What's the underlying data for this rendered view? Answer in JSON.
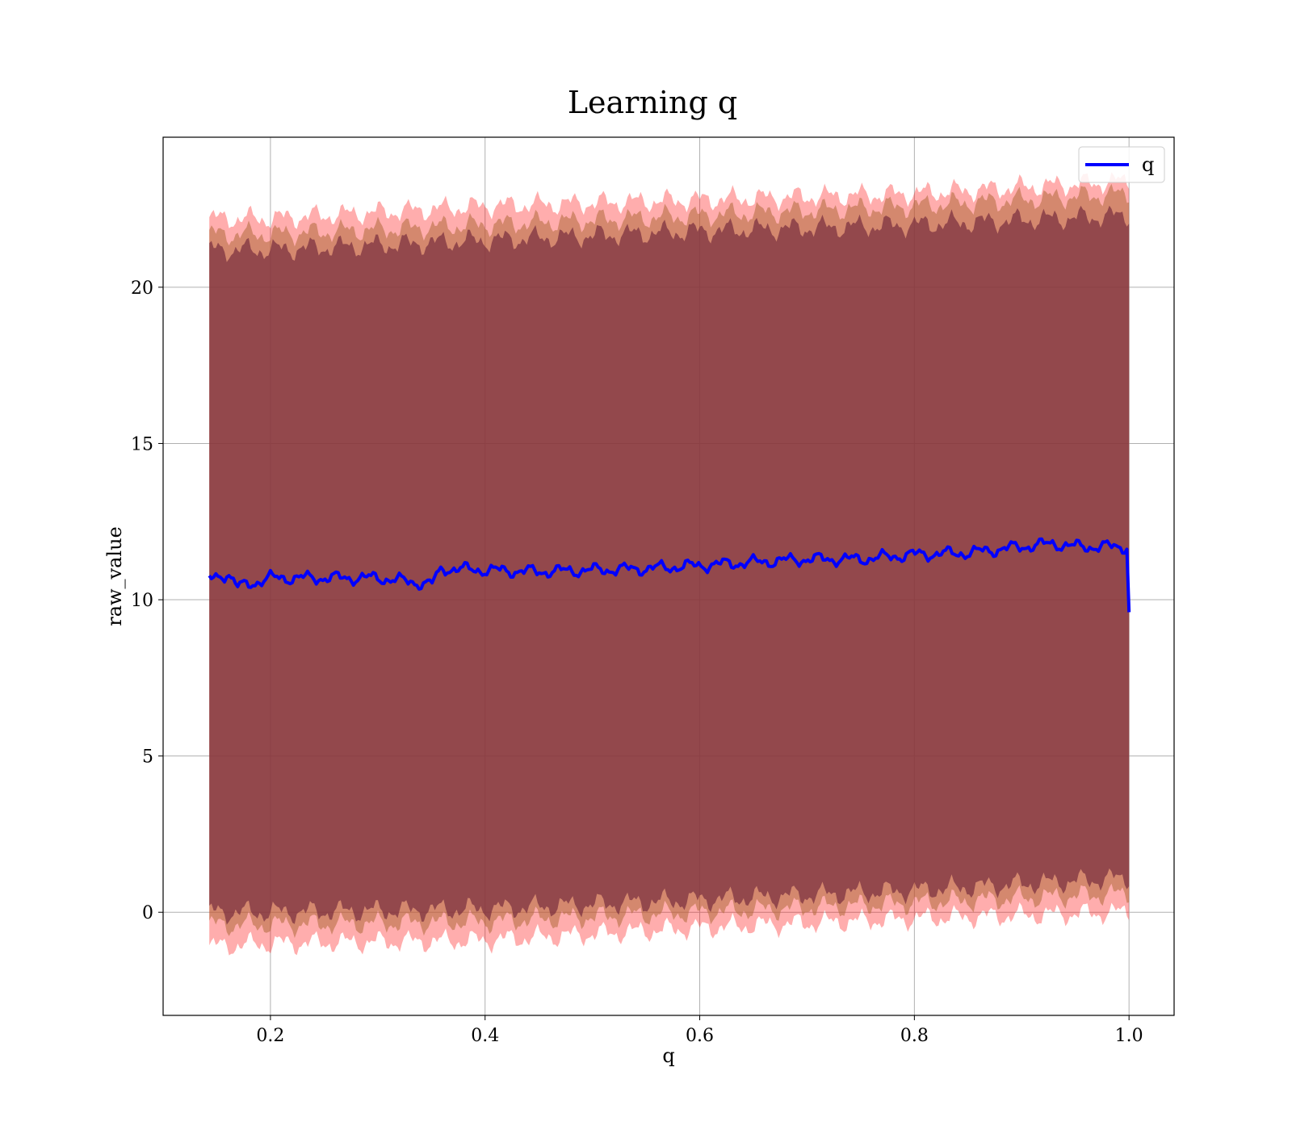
{
  "chart_data": {
    "type": "line",
    "title": "Learning q",
    "xlabel": "q",
    "ylabel": "raw_value",
    "xlim": [
      0.1,
      1.042
    ],
    "ylim": [
      -3.3,
      24.8
    ],
    "xticks": [
      0.2,
      0.4,
      0.6,
      0.8,
      1.0
    ],
    "xtick_labels": [
      "0.2",
      "0.4",
      "0.6",
      "0.8",
      "1.0"
    ],
    "yticks": [
      0,
      5,
      10,
      15,
      20
    ],
    "ytick_labels": [
      "0",
      "5",
      "10",
      "15",
      "20"
    ],
    "grid": true,
    "legend_position": "top-right",
    "x_range": [
      0.143,
      1.0
    ],
    "series": [
      {
        "name": "q",
        "color": "#0000ff",
        "x": [
          0.143,
          0.16,
          0.17,
          0.2,
          0.25,
          0.3,
          0.35,
          0.36,
          0.4,
          0.45,
          0.5,
          0.55,
          0.6,
          0.65,
          0.7,
          0.75,
          0.8,
          0.85,
          0.9,
          0.93,
          0.95,
          0.998,
          1.0
        ],
        "values": [
          10.65,
          10.85,
          10.4,
          10.7,
          10.7,
          10.7,
          10.5,
          11.0,
          10.95,
          10.9,
          10.95,
          11.0,
          11.1,
          11.2,
          11.3,
          11.3,
          11.45,
          11.5,
          11.7,
          11.8,
          11.7,
          11.7,
          9.6
        ]
      }
    ],
    "bands": [
      {
        "color": "#ff0000",
        "opacity": 0.32,
        "x": [
          0.143,
          0.2,
          0.4,
          0.6,
          0.8,
          1.0
        ],
        "upper": [
          22.2,
          22.2,
          22.6,
          22.8,
          23.0,
          23.4
        ],
        "lower": [
          -1.1,
          -1.0,
          -0.9,
          -0.5,
          -0.2,
          0.0
        ]
      },
      {
        "color": "#b06a3a",
        "opacity": 0.55,
        "x": [
          0.143,
          0.2,
          0.4,
          0.6,
          0.8,
          1.0
        ],
        "upper": [
          21.7,
          21.7,
          22.0,
          22.3,
          22.6,
          23.0
        ],
        "lower": [
          -0.4,
          -0.4,
          -0.3,
          0.0,
          0.3,
          0.6
        ]
      },
      {
        "color": "#7a2f40",
        "opacity": 0.72,
        "x": [
          0.143,
          0.2,
          0.4,
          0.6,
          0.8,
          1.0
        ],
        "upper": [
          21.2,
          21.2,
          21.5,
          21.8,
          22.0,
          22.3
        ],
        "lower": [
          0.0,
          0.0,
          0.1,
          0.4,
          0.7,
          1.1
        ]
      }
    ]
  }
}
